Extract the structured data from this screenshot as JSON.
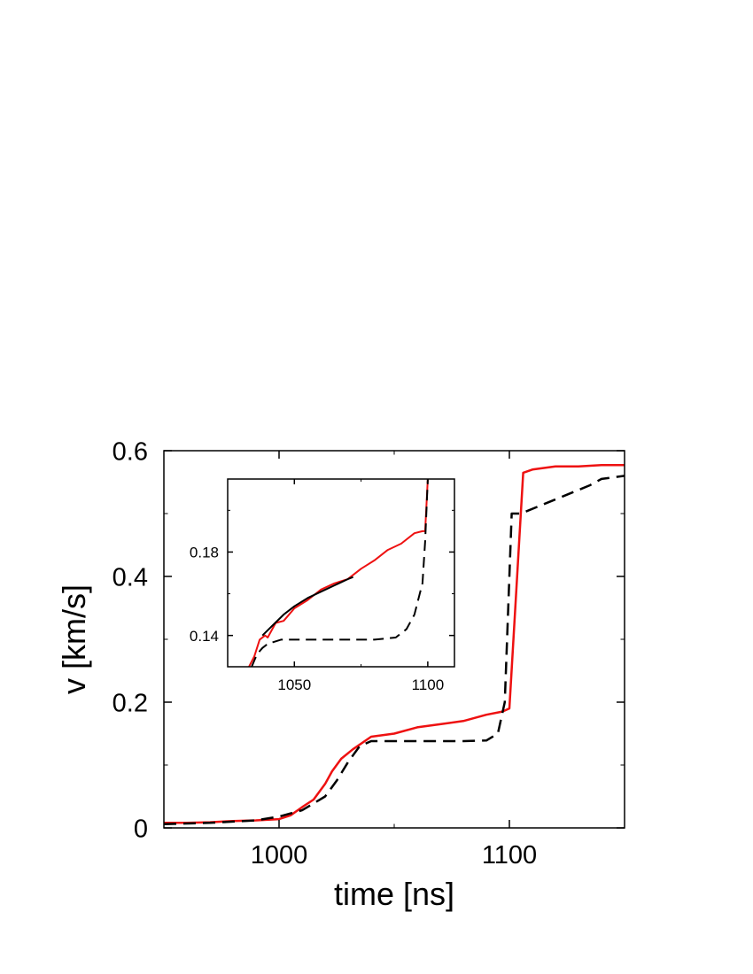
{
  "chart_data": [
    {
      "type": "line",
      "title": "",
      "xlabel": "time [ns]",
      "ylabel": "v [km/s]",
      "xlim": [
        950,
        1150
      ],
      "ylim": [
        0,
        0.6
      ],
      "xticks": [
        1000,
        1100
      ],
      "xtick_labels": [
        "1000",
        "1100"
      ],
      "yticks": [
        0,
        0.2,
        0.4,
        0.6
      ],
      "ytick_labels": [
        "0",
        "0.2",
        "0.4",
        "0.6"
      ],
      "series": [
        {
          "color": "#ee1111",
          "style": "solid",
          "x": [
            950,
            960,
            970,
            980,
            990,
            1000,
            1005,
            1010,
            1015,
            1020,
            1023,
            1027,
            1032,
            1040,
            1050,
            1060,
            1070,
            1080,
            1090,
            1097,
            1100,
            1106,
            1110,
            1120,
            1130,
            1140,
            1150
          ],
          "y": [
            0.008,
            0.008,
            0.009,
            0.011,
            0.012,
            0.014,
            0.02,
            0.033,
            0.045,
            0.07,
            0.09,
            0.11,
            0.125,
            0.145,
            0.15,
            0.16,
            0.165,
            0.17,
            0.18,
            0.185,
            0.19,
            0.565,
            0.57,
            0.575,
            0.575,
            0.577,
            0.577
          ]
        },
        {
          "color": "#000000",
          "style": "dashed",
          "x": [
            950,
            970,
            990,
            1000,
            1010,
            1020,
            1025,
            1030,
            1035,
            1040,
            1050,
            1060,
            1070,
            1080,
            1090,
            1095,
            1098,
            1100,
            1101,
            1105,
            1115,
            1125,
            1135,
            1140,
            1150
          ],
          "y": [
            0.006,
            0.008,
            0.012,
            0.018,
            0.028,
            0.05,
            0.075,
            0.105,
            0.13,
            0.138,
            0.138,
            0.138,
            0.138,
            0.138,
            0.139,
            0.15,
            0.2,
            0.4,
            0.5,
            0.5,
            0.515,
            0.53,
            0.545,
            0.555,
            0.56
          ]
        }
      ]
    },
    {
      "type": "line",
      "title": "",
      "xlabel": "",
      "ylabel": "",
      "xlim": [
        1025,
        1110
      ],
      "ylim": [
        0.125,
        0.215
      ],
      "xticks": [
        1050,
        1100
      ],
      "xtick_labels": [
        "1050",
        "1100"
      ],
      "yticks": [
        0.14,
        0.18
      ],
      "ytick_labels": [
        "0.14",
        "0.18"
      ],
      "series": [
        {
          "color": "#ee1111",
          "style": "solid",
          "x": [
            1033,
            1035,
            1037,
            1039,
            1040,
            1043,
            1046,
            1050,
            1055,
            1060,
            1065,
            1070,
            1075,
            1080,
            1085,
            1090,
            1095,
            1098,
            1099,
            1100
          ],
          "y": [
            0.125,
            0.13,
            0.138,
            0.14,
            0.139,
            0.146,
            0.147,
            0.153,
            0.157,
            0.162,
            0.165,
            0.167,
            0.172,
            0.176,
            0.181,
            0.184,
            0.189,
            0.19,
            0.19,
            0.215
          ]
        },
        {
          "color": "#000000",
          "style": "solid",
          "x": [
            1038,
            1042,
            1046,
            1050,
            1055,
            1060,
            1065,
            1070,
            1072
          ],
          "y": [
            0.14,
            0.145,
            0.15,
            0.154,
            0.158,
            0.161,
            0.164,
            0.167,
            0.168
          ]
        },
        {
          "color": "#000000",
          "style": "dashed",
          "x": [
            1034,
            1035,
            1036,
            1038,
            1040,
            1045,
            1050,
            1060,
            1070,
            1080,
            1088,
            1092,
            1095,
            1097,
            1098,
            1099,
            1100
          ],
          "y": [
            0.125,
            0.128,
            0.131,
            0.134,
            0.136,
            0.138,
            0.138,
            0.138,
            0.138,
            0.138,
            0.139,
            0.143,
            0.15,
            0.16,
            0.165,
            0.185,
            0.215
          ]
        }
      ]
    }
  ]
}
